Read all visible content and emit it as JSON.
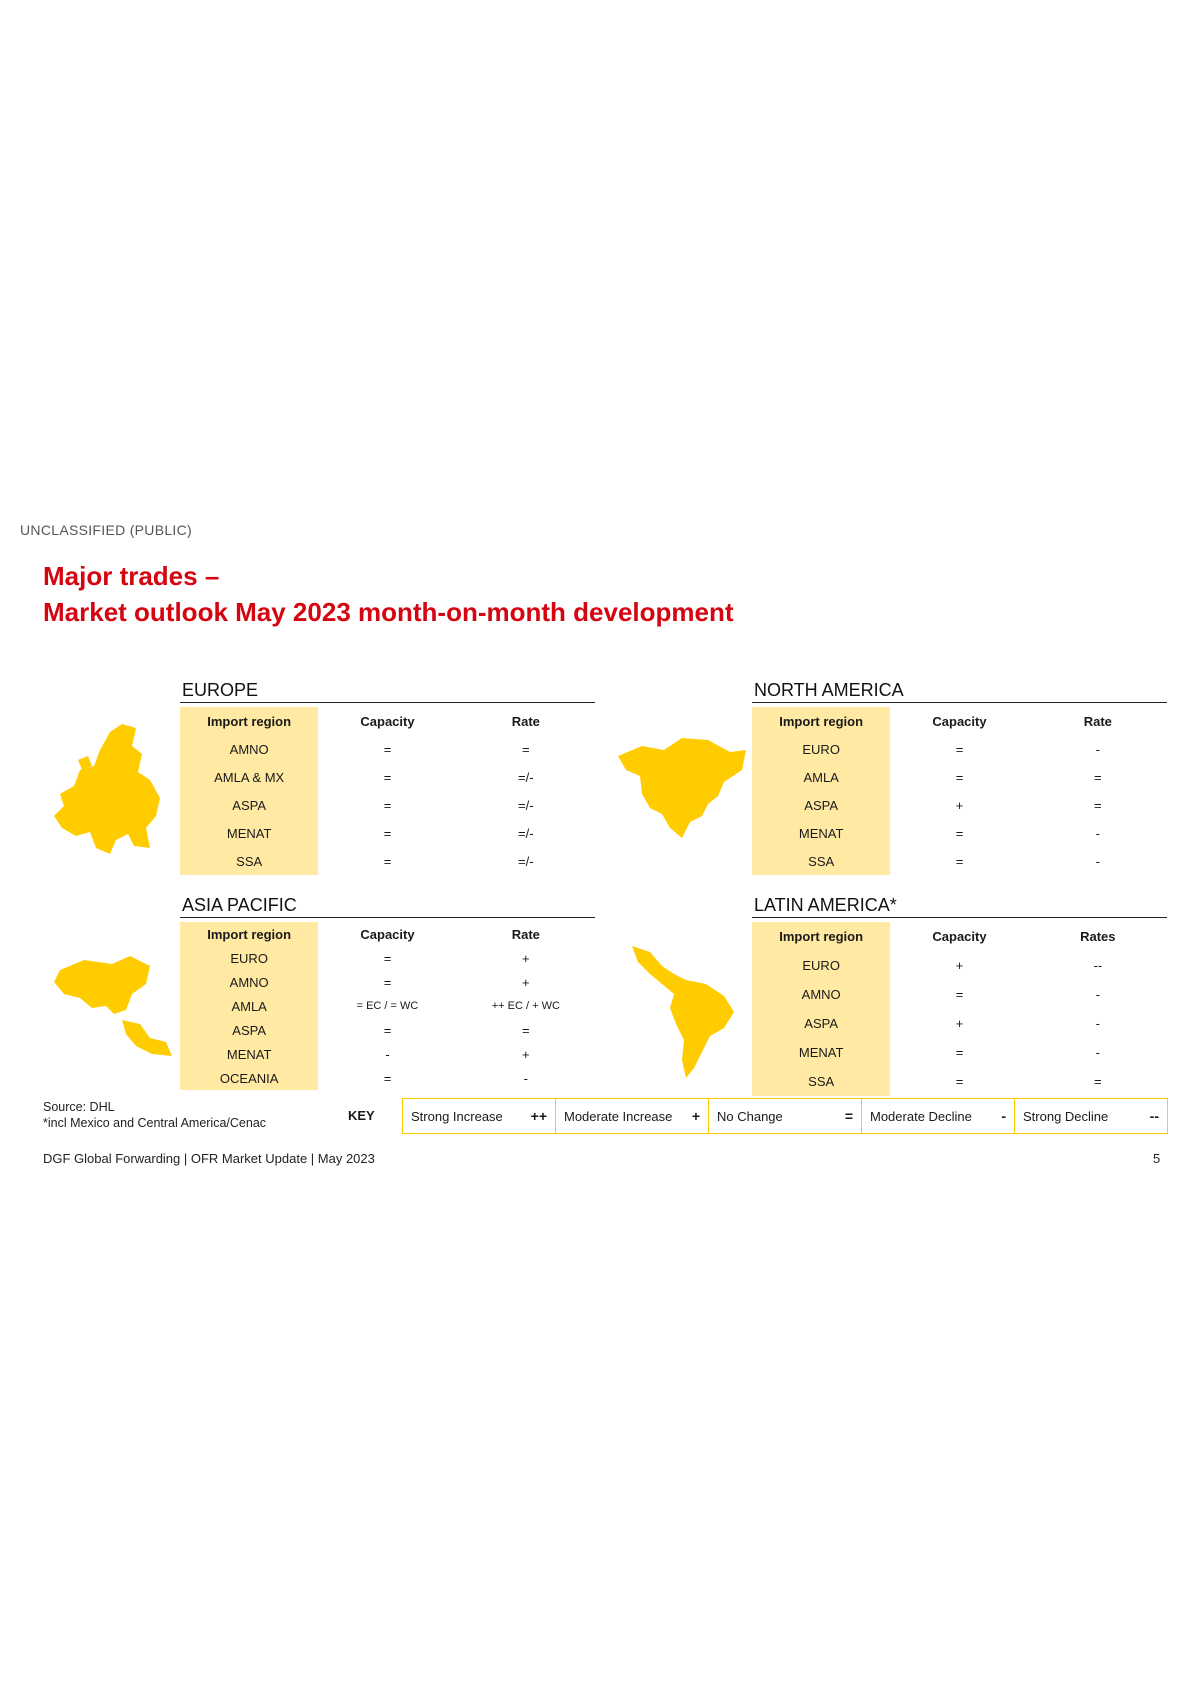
{
  "classification": "UNCLASSIFIED  (PUBLIC)",
  "title_line1": "Major trades –",
  "title_line2": "Market outlook May 2023 month-on-month development",
  "headers": {
    "region": "Import region",
    "capacity": "Capacity",
    "rate": "Rate",
    "rates": "Rates"
  },
  "panels": {
    "europe": {
      "title": "EUROPE",
      "rows": [
        {
          "region": "AMNO",
          "capacity": "=",
          "rate": "="
        },
        {
          "region": "AMLA & MX",
          "capacity": "=",
          "rate": "=/-"
        },
        {
          "region": "ASPA",
          "capacity": "=",
          "rate": "=/-"
        },
        {
          "region": "MENAT",
          "capacity": "=",
          "rate": "=/-"
        },
        {
          "region": "SSA",
          "capacity": "=",
          "rate": "=/-"
        }
      ]
    },
    "north_america": {
      "title": "NORTH AMERICA",
      "rows": [
        {
          "region": "EURO",
          "capacity": "=",
          "rate": "-"
        },
        {
          "region": "AMLA",
          "capacity": "=",
          "rate": "="
        },
        {
          "region": "ASPA",
          "capacity": "+",
          "rate": "="
        },
        {
          "region": "MENAT",
          "capacity": "=",
          "rate": "-"
        },
        {
          "region": "SSA",
          "capacity": "=",
          "rate": "-"
        }
      ]
    },
    "asia_pacific": {
      "title": "ASIA PACIFIC",
      "rows": [
        {
          "region": "EURO",
          "capacity": "=",
          "rate": "+"
        },
        {
          "region": "AMNO",
          "capacity": "=",
          "rate": "+"
        },
        {
          "region": "AMLA",
          "capacity": "= EC / = WC",
          "rate": "++ EC / + WC"
        },
        {
          "region": "ASPA",
          "capacity": "=",
          "rate": "="
        },
        {
          "region": "MENAT",
          "capacity": "-",
          "rate": "+"
        },
        {
          "region": "OCEANIA",
          "capacity": "=",
          "rate": "-"
        }
      ]
    },
    "latin_america": {
      "title": "LATIN AMERICA*",
      "rows": [
        {
          "region": "EURO",
          "capacity": "+",
          "rate": "--"
        },
        {
          "region": "AMNO",
          "capacity": "=",
          "rate": "-"
        },
        {
          "region": "ASPA",
          "capacity": "+",
          "rate": "-"
        },
        {
          "region": "MENAT",
          "capacity": "=",
          "rate": "-"
        },
        {
          "region": "SSA",
          "capacity": "=",
          "rate": "="
        }
      ]
    }
  },
  "source": "Source: DHL",
  "footnote": "*incl Mexico and Central America/Cenac",
  "key": {
    "label": "KEY",
    "items": [
      {
        "label": "Strong Increase",
        "symbol": "++"
      },
      {
        "label": "Moderate Increase",
        "symbol": "+"
      },
      {
        "label": "No Change",
        "symbol": "="
      },
      {
        "label": "Moderate Decline",
        "symbol": "-"
      },
      {
        "label": "Strong Decline",
        "symbol": "--"
      }
    ]
  },
  "footer": "DGF Global Forwarding | OFR Market Update | May 2023",
  "page_number": "5",
  "colors": {
    "accent_red": "#d40511",
    "yellow": "#ffcc00",
    "region_fill": "#ffe9a3"
  }
}
